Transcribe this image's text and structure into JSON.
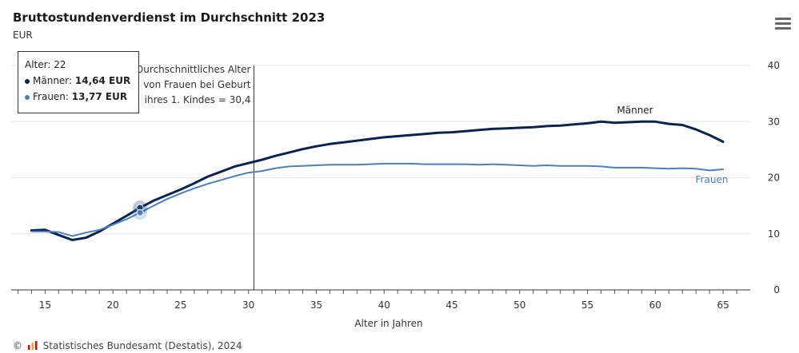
{
  "header": {
    "title": "Bruttostundenverdienst im Durchschnitt 2023",
    "subtitle": "EUR"
  },
  "menu": {
    "icon": "hamburger-menu-icon"
  },
  "tooltip": {
    "age_label": "Alter: 22",
    "maenner_label": "Männer: ",
    "maenner_value": "14,64 EUR",
    "frauen_label": "Frauen: ",
    "frauen_value": "13,77 EUR"
  },
  "footer": {
    "copyright": "©",
    "source": "Statistisches Bundesamt (Destatis), 2024"
  },
  "chart_data": {
    "type": "line",
    "title": "Bruttostundenverdienst im Durchschnitt 2023",
    "subtitle": "EUR",
    "xlabel": "Alter in Jahren",
    "ylabel": "",
    "xlim": [
      12.5,
      67
    ],
    "ylim": [
      0,
      40
    ],
    "x_ticks": [
      15,
      20,
      25,
      30,
      35,
      40,
      45,
      50,
      55,
      60,
      65
    ],
    "y_ticks": [
      0,
      10,
      20,
      30,
      40
    ],
    "grid": true,
    "highlight_x": 22,
    "annotation": {
      "x": 30.4,
      "lines": [
        "Durchschnittliches Alter",
        "von Frauen bei Geburt",
        "ihres 1. Kindes = 30,4"
      ]
    },
    "x": [
      14,
      15,
      16,
      17,
      18,
      19,
      20,
      21,
      22,
      23,
      24,
      25,
      26,
      27,
      28,
      29,
      30,
      31,
      32,
      33,
      34,
      35,
      36,
      37,
      38,
      39,
      40,
      41,
      42,
      43,
      44,
      45,
      46,
      47,
      48,
      49,
      50,
      51,
      52,
      53,
      54,
      55,
      56,
      57,
      58,
      59,
      60,
      61,
      62,
      63,
      64,
      65
    ],
    "series": [
      {
        "name": "Männer",
        "color": "#0c2250",
        "values": [
          10.6,
          10.7,
          9.8,
          8.9,
          9.3,
          10.4,
          11.8,
          13.2,
          14.64,
          15.9,
          16.9,
          17.9,
          19.0,
          20.2,
          21.1,
          22.0,
          22.6,
          23.2,
          23.9,
          24.5,
          25.1,
          25.6,
          26.0,
          26.3,
          26.6,
          26.9,
          27.2,
          27.4,
          27.6,
          27.8,
          28.0,
          28.1,
          28.3,
          28.5,
          28.7,
          28.8,
          28.9,
          29.0,
          29.2,
          29.3,
          29.5,
          29.7,
          30.0,
          29.8,
          29.9,
          30.0,
          30.0,
          29.6,
          29.4,
          28.6,
          27.6,
          26.4
        ]
      },
      {
        "name": "Frauen",
        "color": "#4a7fc1",
        "values": [
          10.4,
          10.4,
          10.3,
          9.6,
          10.2,
          10.7,
          11.6,
          12.6,
          13.77,
          15.0,
          16.2,
          17.2,
          18.1,
          18.9,
          19.6,
          20.3,
          20.9,
          21.2,
          21.7,
          22.0,
          22.1,
          22.2,
          22.3,
          22.3,
          22.3,
          22.4,
          22.5,
          22.5,
          22.5,
          22.4,
          22.4,
          22.4,
          22.4,
          22.3,
          22.4,
          22.3,
          22.2,
          22.1,
          22.2,
          22.1,
          22.1,
          22.1,
          22.0,
          21.8,
          21.8,
          21.8,
          21.7,
          21.6,
          21.7,
          21.6,
          21.3,
          21.5
        ]
      }
    ]
  }
}
